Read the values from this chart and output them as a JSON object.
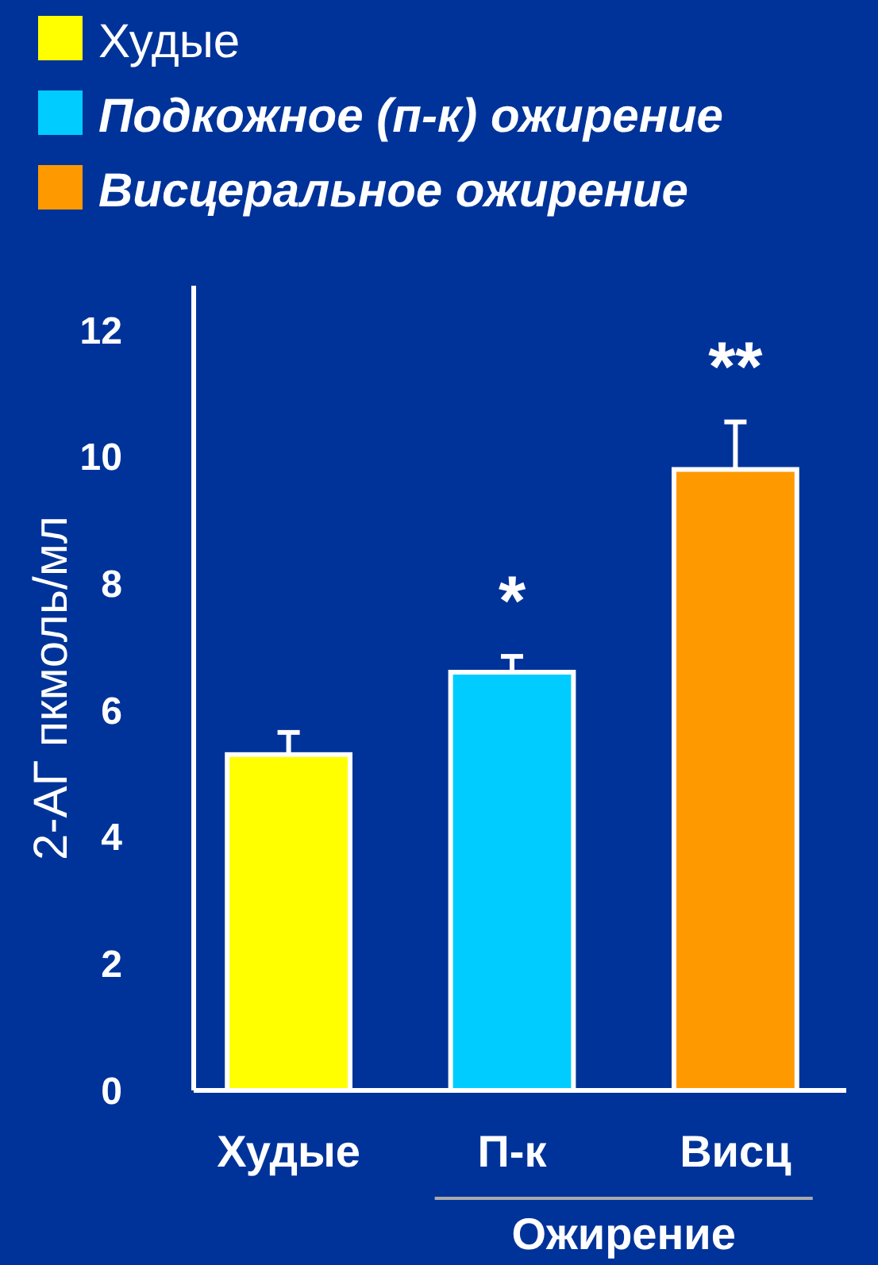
{
  "chart_data": {
    "type": "bar",
    "categories": [
      "Худые",
      "П-к",
      "Висц"
    ],
    "xlabel": "Ожирение",
    "ylabel": "2-АГ пкмоль/мл",
    "ylim": [
      0,
      12.7
    ],
    "yticks": [
      0,
      2,
      4,
      6,
      8,
      10,
      12
    ],
    "legend": "top left",
    "series": [
      {
        "name": "Худые",
        "color": "#ffff00",
        "values": [
          5.3,
          null,
          null
        ],
        "errors": [
          0.35,
          null,
          null
        ]
      },
      {
        "name": "Подкожное (п-к) ожирение",
        "color": "#00ccff",
        "values": [
          null,
          6.6,
          null
        ],
        "errors": [
          null,
          0.25,
          null
        ]
      },
      {
        "name": "Висцеральное ожирение",
        "color": "#ff9900",
        "values": [
          null,
          null,
          9.8
        ],
        "errors": [
          null,
          null,
          0.75
        ]
      }
    ],
    "annotations": [
      "*",
      "**"
    ]
  }
}
